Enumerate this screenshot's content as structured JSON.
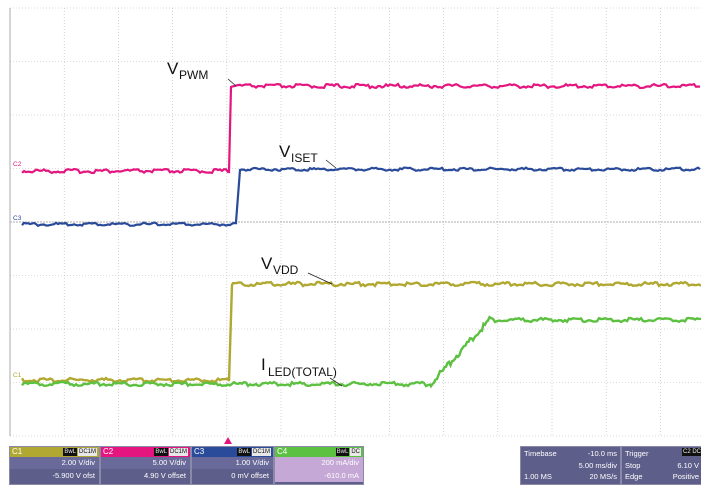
{
  "waveform_labels": {
    "pwm": {
      "main": "V",
      "sub": "PWM"
    },
    "iset": {
      "main": "V",
      "sub": "ISET"
    },
    "vdd": {
      "main": "V",
      "sub": "VDD"
    },
    "iled": {
      "main": "I",
      "sub": "LED(TOTAL)"
    }
  },
  "channel_markers": {
    "c2": "C2",
    "c3": "C3",
    "c1": "C1"
  },
  "channels": [
    {
      "id": "c1",
      "name": "C1",
      "bw_tag": "BwL",
      "coupling_tag": "DC1M",
      "scale": "2.00 V/div",
      "offset": "-5.900 V ofst",
      "color": "#b0a830"
    },
    {
      "id": "c2",
      "name": "C2",
      "bw_tag": "BwL",
      "coupling_tag": "DC1M",
      "scale": "5.00 V/div",
      "offset": "4.90 V offset",
      "color": "#e4157f"
    },
    {
      "id": "c3",
      "name": "C3",
      "bw_tag": "BwL",
      "coupling_tag": "DC1M",
      "scale": "1.00 V/div",
      "offset": "0 mV offset",
      "color": "#2a4a9a"
    },
    {
      "id": "c4",
      "name": "C4",
      "bw_tag": "BwL",
      "coupling_tag": "DC",
      "scale": "200 mA/div",
      "offset": "-610.0 mA",
      "color": "#5cc040"
    }
  ],
  "timebase": {
    "label": "Timebase",
    "delay": "-10.0 ms",
    "scale": "5.00 ms/div",
    "samples": "1.00 MS",
    "rate": "20 MS/s"
  },
  "trigger": {
    "label": "Trigger",
    "channel_tag": "C2 DC",
    "mode": "Stop",
    "level": "6.10 V",
    "type": "Edge",
    "slope": "Positive"
  }
}
